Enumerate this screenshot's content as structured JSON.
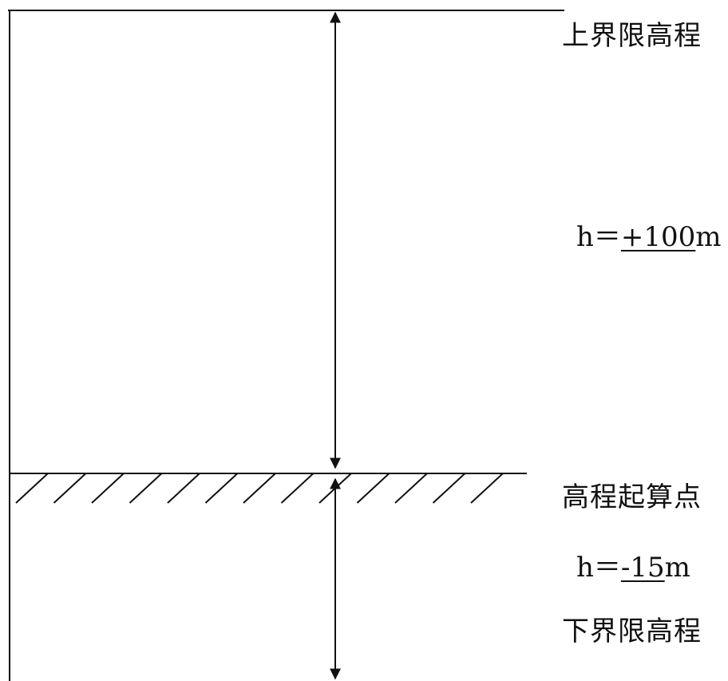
{
  "labels": {
    "upper_limit": "上界限高程",
    "upper_h_prefix": "h＝",
    "upper_h_value": "+100",
    "upper_h_unit": "m",
    "datum": "高程起算点",
    "lower_h_prefix": "h＝",
    "lower_h_value": "-15",
    "lower_h_unit": "m",
    "lower_limit": "下界限高程"
  },
  "colors": {
    "line": "#111111",
    "background": "#ffffff"
  }
}
